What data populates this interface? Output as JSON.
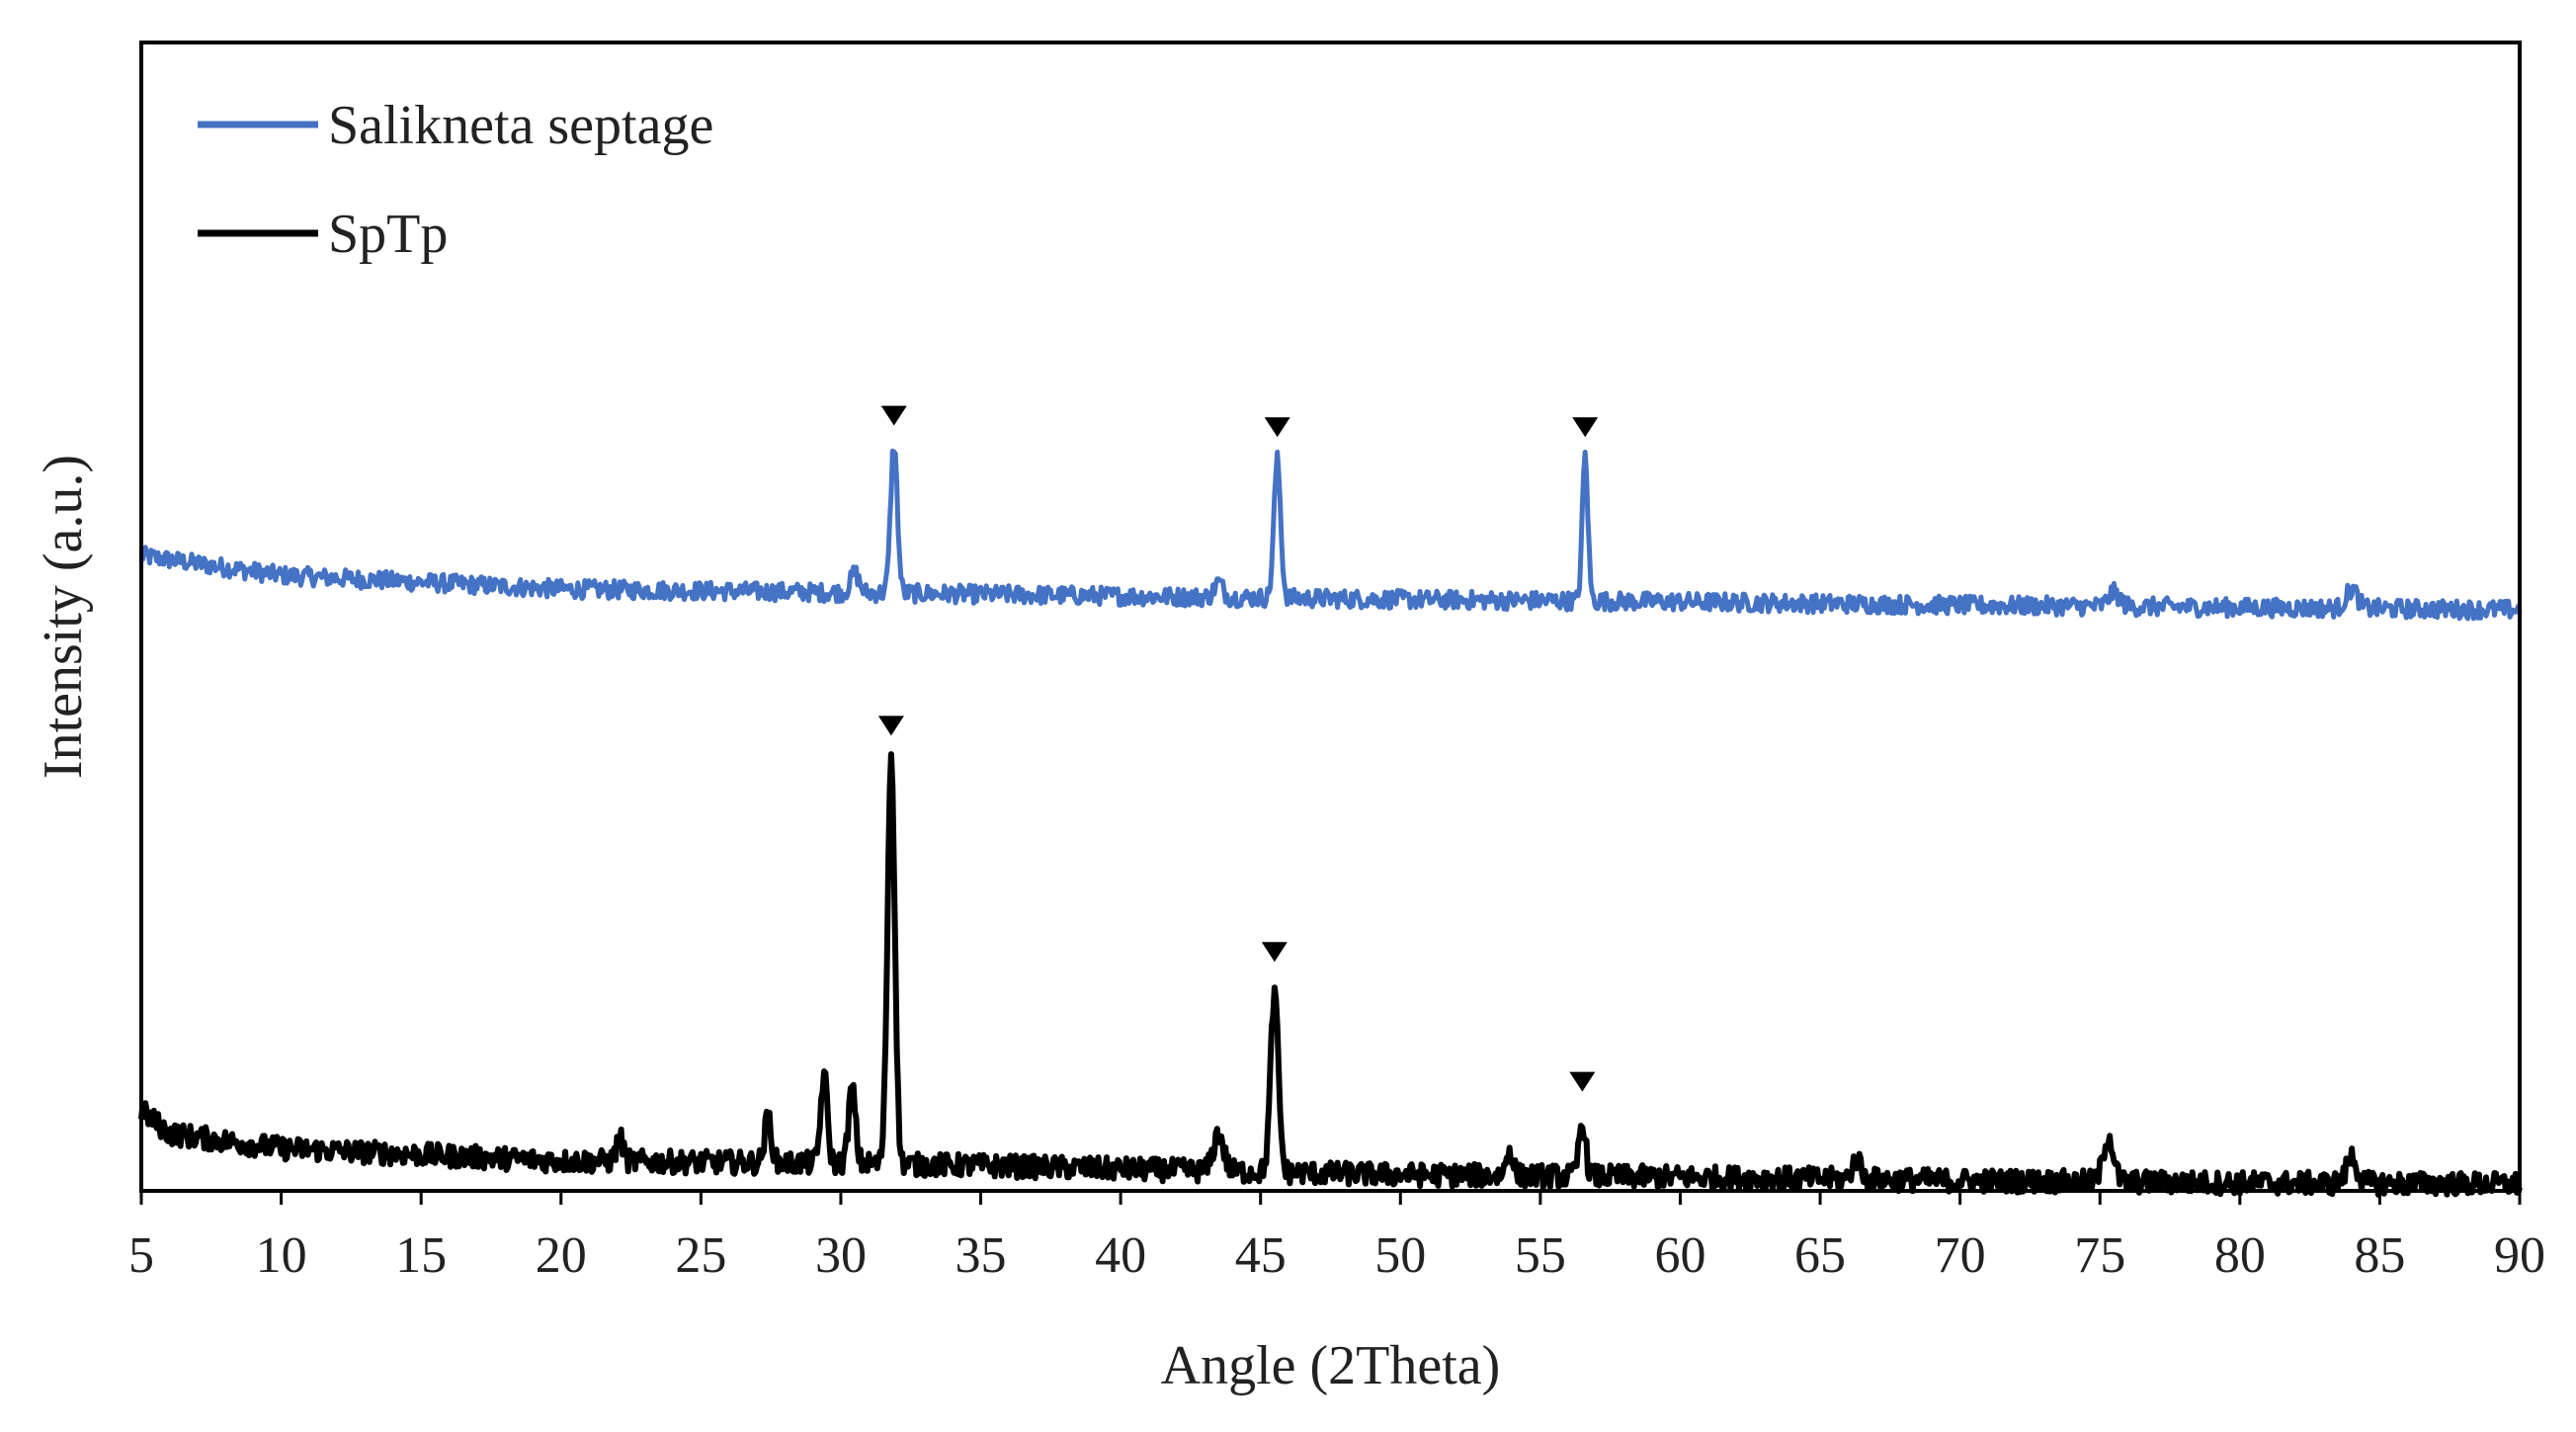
{
  "chart_data": {
    "type": "line",
    "title": "",
    "xlabel": "Angle (2Theta)",
    "ylabel": "Intensity (a.u.)",
    "xlim": [
      5,
      90
    ],
    "ylim": [
      0,
      100
    ],
    "x_ticks": [
      5,
      10,
      15,
      20,
      25,
      30,
      35,
      40,
      45,
      50,
      55,
      60,
      65,
      70,
      75,
      80,
      85,
      90
    ],
    "y_ticks_shown": false,
    "grid": false,
    "legend_position": "top-left",
    "series": [
      {
        "name": "Salikneta septage",
        "color": "#4472c4",
        "baseline": [
          [
            5,
            55.3
          ],
          [
            10,
            53.6
          ],
          [
            20,
            52.4
          ],
          [
            30,
            52.1
          ],
          [
            40,
            51.8
          ],
          [
            50,
            51.5
          ],
          [
            60,
            51.3
          ],
          [
            70,
            51.0
          ],
          [
            80,
            50.8
          ],
          [
            90,
            50.6
          ]
        ],
        "peaks": [
          {
            "x": 31.9,
            "y": 65.0,
            "width": 0.12
          },
          {
            "x": 45.6,
            "y": 63.6,
            "width": 0.12
          },
          {
            "x": 56.6,
            "y": 64.0,
            "width": 0.1
          },
          {
            "x": 30.5,
            "y": 53.8,
            "width": 0.15
          },
          {
            "x": 43.5,
            "y": 53.0,
            "width": 0.15
          },
          {
            "x": 75.5,
            "y": 52.1,
            "width": 0.2
          },
          {
            "x": 84.0,
            "y": 52.4,
            "width": 0.2
          }
        ],
        "markers": [
          31.9,
          45.6,
          56.6
        ]
      },
      {
        "name": "SpTp",
        "color": "#000000",
        "baseline": [
          [
            5,
            7.0
          ],
          [
            6,
            5.0
          ],
          [
            10,
            3.7
          ],
          [
            20,
            2.6
          ],
          [
            30,
            2.4
          ],
          [
            35,
            2.2
          ],
          [
            40,
            1.9
          ],
          [
            50,
            1.4
          ],
          [
            60,
            1.2
          ],
          [
            70,
            0.9
          ],
          [
            80,
            0.7
          ],
          [
            90,
            0.6
          ]
        ],
        "peaks": [
          {
            "x": 31.8,
            "y": 38.0,
            "width": 0.13
          },
          {
            "x": 45.5,
            "y": 17.0,
            "width": 0.14
          },
          {
            "x": 56.5,
            "y": 6.0,
            "width": 0.12
          },
          {
            "x": 29.4,
            "y": 10.0,
            "width": 0.12
          },
          {
            "x": 30.4,
            "y": 9.0,
            "width": 0.12
          },
          {
            "x": 27.4,
            "y": 6.5,
            "width": 0.12
          },
          {
            "x": 43.5,
            "y": 5.0,
            "width": 0.18
          },
          {
            "x": 22.1,
            "y": 4.6,
            "width": 0.12
          },
          {
            "x": 53.9,
            "y": 3.6,
            "width": 0.12
          },
          {
            "x": 66.3,
            "y": 2.8,
            "width": 0.15
          },
          {
            "x": 75.3,
            "y": 4.8,
            "width": 0.18
          },
          {
            "x": 84.0,
            "y": 3.0,
            "width": 0.18
          }
        ],
        "markers": [
          31.8,
          45.5,
          56.5
        ]
      }
    ],
    "annotations": [
      {
        "type": "peak-marker",
        "symbol": "▼",
        "x": 31.9,
        "y": 67.5,
        "series": "Salikneta septage"
      },
      {
        "type": "peak-marker",
        "symbol": "▼",
        "x": 45.6,
        "y": 66.5,
        "series": "Salikneta septage"
      },
      {
        "type": "peak-marker",
        "symbol": "▼",
        "x": 56.6,
        "y": 66.5,
        "series": "Salikneta septage"
      },
      {
        "type": "peak-marker",
        "symbol": "▼",
        "x": 31.8,
        "y": 40.5,
        "series": "SpTp"
      },
      {
        "type": "peak-marker",
        "symbol": "▼",
        "x": 45.5,
        "y": 20.8,
        "series": "SpTp"
      },
      {
        "type": "peak-marker",
        "symbol": "▼",
        "x": 56.5,
        "y": 9.5,
        "series": "SpTp"
      }
    ]
  }
}
